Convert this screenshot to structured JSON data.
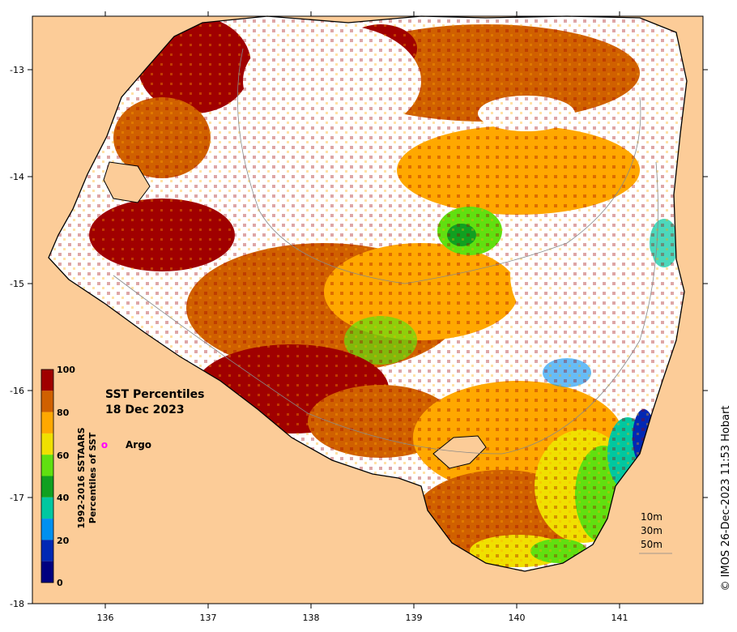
{
  "map": {
    "title_line1": "SST Percentiles",
    "title_line2": "18 Dec 2023",
    "credit": "© IMOS 26-Dec-2023 11:53 Hobart",
    "x_ticks": [
      "136",
      "137",
      "138",
      "139",
      "140",
      "141"
    ],
    "y_ticks": [
      "-13",
      "-14",
      "-15",
      "-16",
      "-17",
      "-18"
    ],
    "legend": {
      "marker_label": "Argo",
      "marker_symbol": "o"
    },
    "colorbar": {
      "label_line1": "1992-2016 SSTAARS",
      "label_line2": "Percentiles of SST",
      "tick_labels": [
        "100",
        "80",
        "60",
        "40",
        "20",
        "0"
      ],
      "colors": [
        "#000080",
        "#0028b4",
        "#0090f0",
        "#00c8a0",
        "#10a020",
        "#60e010",
        "#f0e000",
        "#ffa800",
        "#d06000",
        "#a00000"
      ]
    },
    "depth_contours": [
      "10m",
      "30m",
      "50m"
    ],
    "colors": {
      "land": "#fccc98",
      "no_data": "#ffffff",
      "coast": "#000000"
    }
  }
}
